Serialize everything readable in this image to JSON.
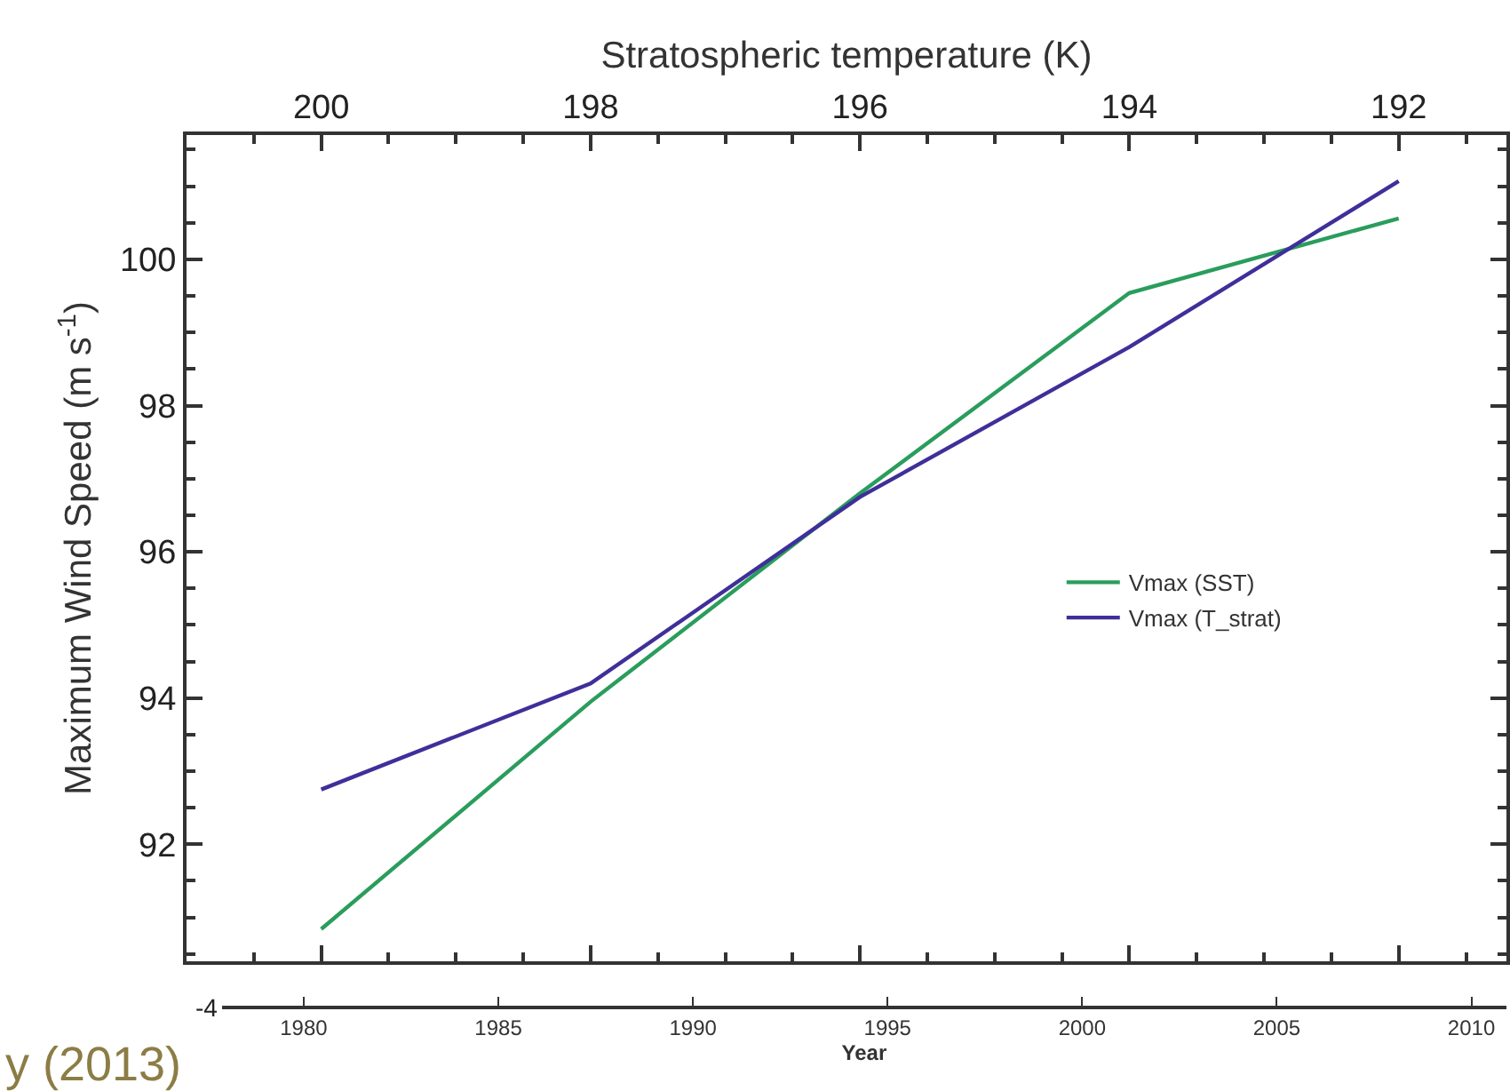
{
  "chart_data": {
    "type": "line",
    "x2label": "Stratospheric temperature (K)",
    "xlabel": "Year",
    "ylabel": "Maximum Wind Speed (m s$^{-1}$)",
    "x2lim": [
      201,
      191.2
    ],
    "x2ticks": [
      200,
      198,
      196,
      194,
      192
    ],
    "xlim": [
      1977.9,
      2010.9
    ],
    "xticks": [
      1980,
      1985,
      1990,
      1995,
      2000,
      2005,
      2010
    ],
    "ylim": [
      90.4,
      101.7
    ],
    "yticks": [
      92,
      94,
      96,
      98,
      100
    ],
    "x": [
      200,
      198,
      196,
      194,
      192
    ],
    "series": [
      {
        "name": "Vmax (SST)",
        "color": "#2a9d5c",
        "axis": "x2",
        "values": [
          90.84,
          93.95,
          96.8,
          99.54,
          100.56
        ]
      },
      {
        "name": "Vmax (T_strat)",
        "color": "#3f2f9a",
        "axis": "x2",
        "values": [
          92.75,
          94.2,
          96.75,
          98.8,
          101.07
        ]
      }
    ],
    "legend": "right",
    "marker": "none",
    "line_style": "solid",
    "annotations": [
      "y (2013)",
      "-4"
    ]
  }
}
